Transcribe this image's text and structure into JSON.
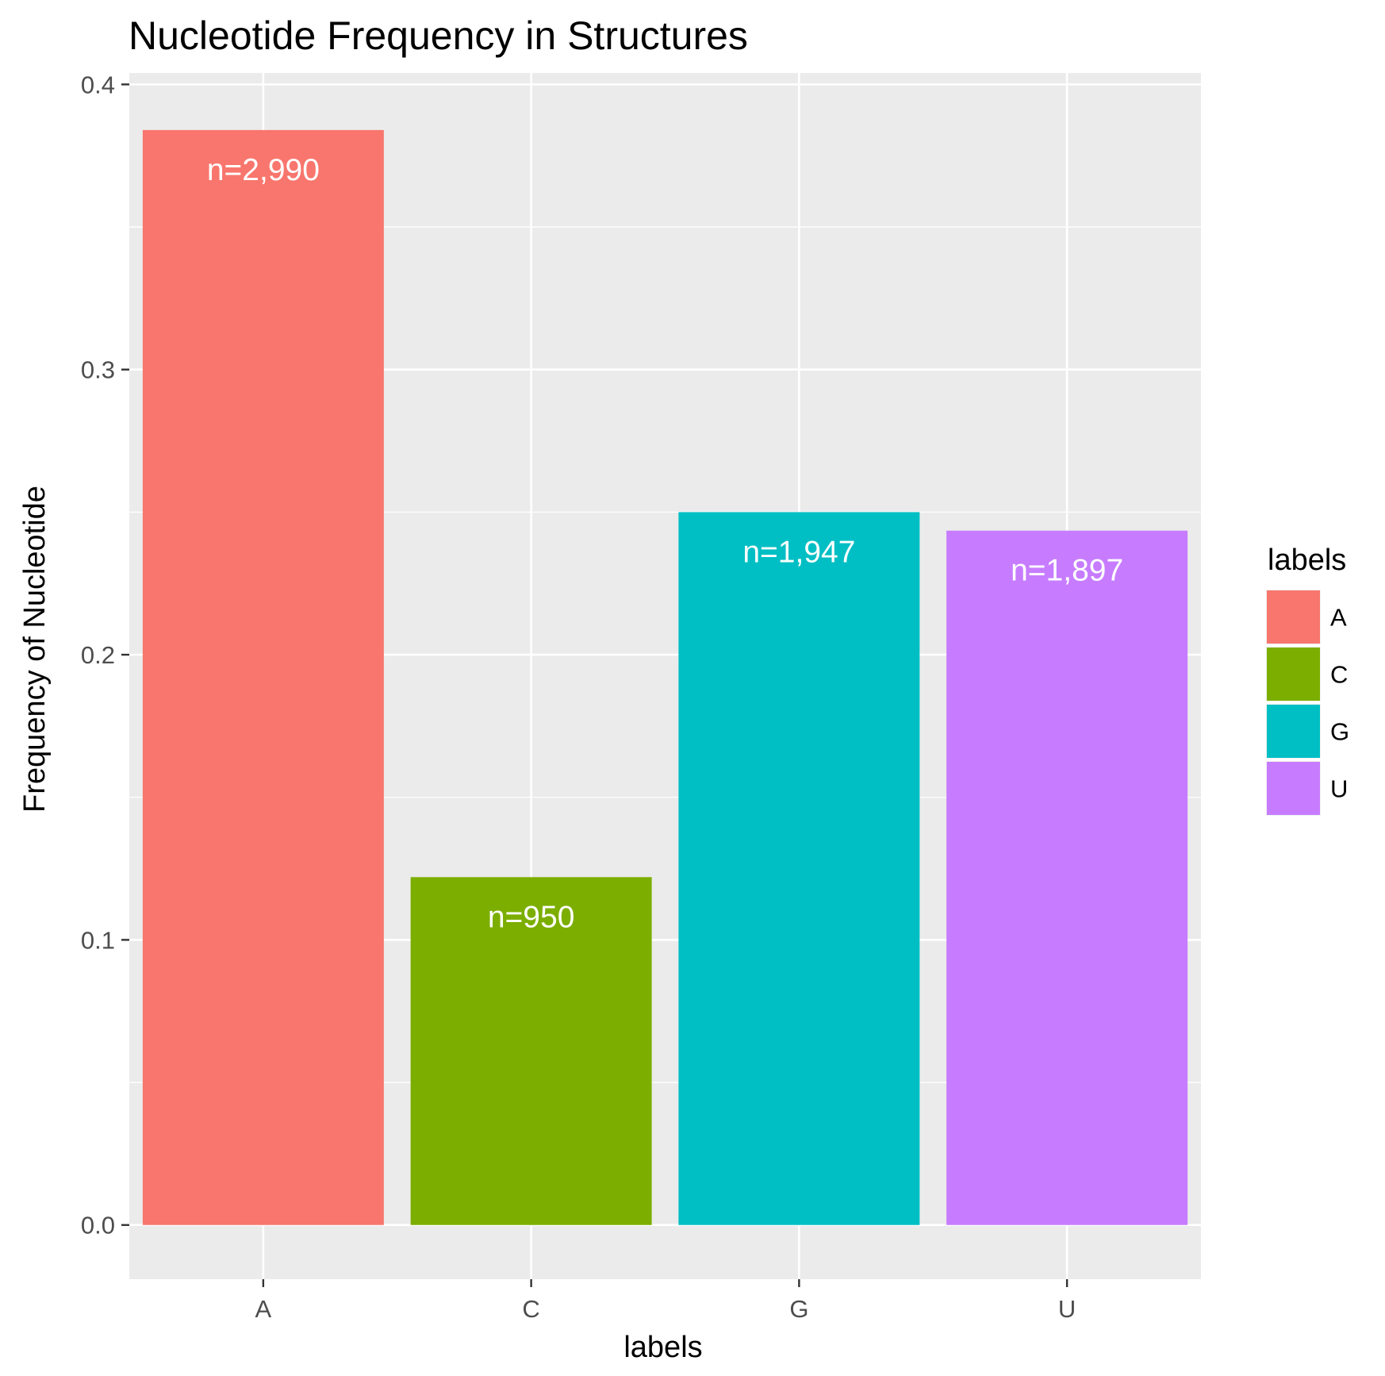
{
  "chart_data": {
    "type": "bar",
    "title": "Nucleotide Frequency in Structures",
    "xlabel": "labels",
    "ylabel": "Frequency of Nucleotide",
    "categories": [
      "A",
      "C",
      "G",
      "U"
    ],
    "values": [
      0.384,
      0.122,
      0.25,
      0.2435
    ],
    "bar_labels": [
      "n=2,990",
      "n=950",
      "n=1,947",
      "n=1,897"
    ],
    "colors": [
      "#F8766D",
      "#7CAE00",
      "#00BFC4",
      "#C77CFF"
    ],
    "ylim": [
      -0.019,
      0.404
    ],
    "yticks": [
      0.0,
      0.1,
      0.2,
      0.3,
      0.4
    ],
    "ytick_labels": [
      "0.0",
      "0.1",
      "0.2",
      "0.3",
      "0.4"
    ],
    "grid": true,
    "legend": {
      "title": "labels",
      "placement": "right",
      "entries": [
        "A",
        "C",
        "G",
        "U"
      ]
    }
  }
}
